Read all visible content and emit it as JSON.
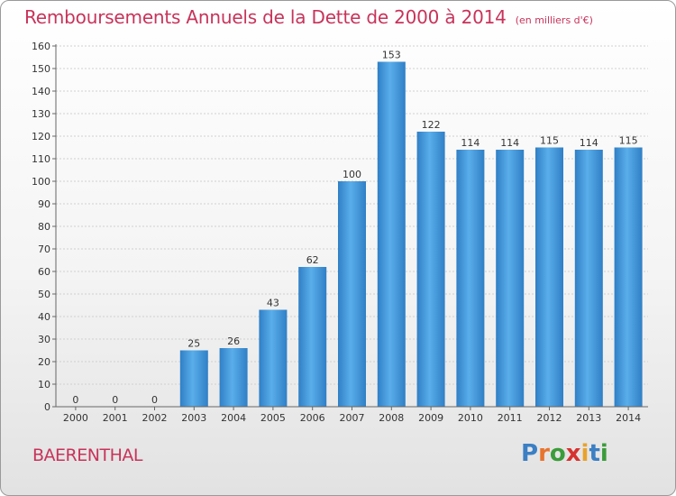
{
  "title": "Remboursements Annuels de la Dette de 2000 à 2014",
  "unit": "(en milliers d'€)",
  "commune": "BAERENTHAL",
  "logo": {
    "letters": [
      "P",
      "r",
      "o",
      "x",
      "i",
      "t",
      "i"
    ],
    "colors": [
      "#3b7fc4",
      "#e8742e",
      "#3b9c3a",
      "#d6322f",
      "#e8a32e",
      "#3b7fc4",
      "#3b9c3a"
    ]
  },
  "chart_data": {
    "type": "bar",
    "title": "Remboursements Annuels de la Dette de 2000 à 2014",
    "categories": [
      "2000",
      "2001",
      "2002",
      "2003",
      "2004",
      "2005",
      "2006",
      "2007",
      "2008",
      "2009",
      "2010",
      "2011",
      "2012",
      "2013",
      "2014"
    ],
    "values": [
      0,
      0,
      0,
      25,
      26,
      43,
      62,
      100,
      153,
      122,
      114,
      114,
      115,
      114,
      115
    ],
    "ylim": [
      0,
      160
    ],
    "yticks": [
      0,
      10,
      20,
      30,
      40,
      50,
      60,
      70,
      80,
      90,
      100,
      110,
      120,
      130,
      140,
      150,
      160
    ],
    "grid": true,
    "bar_color": "#4a9ee0"
  }
}
